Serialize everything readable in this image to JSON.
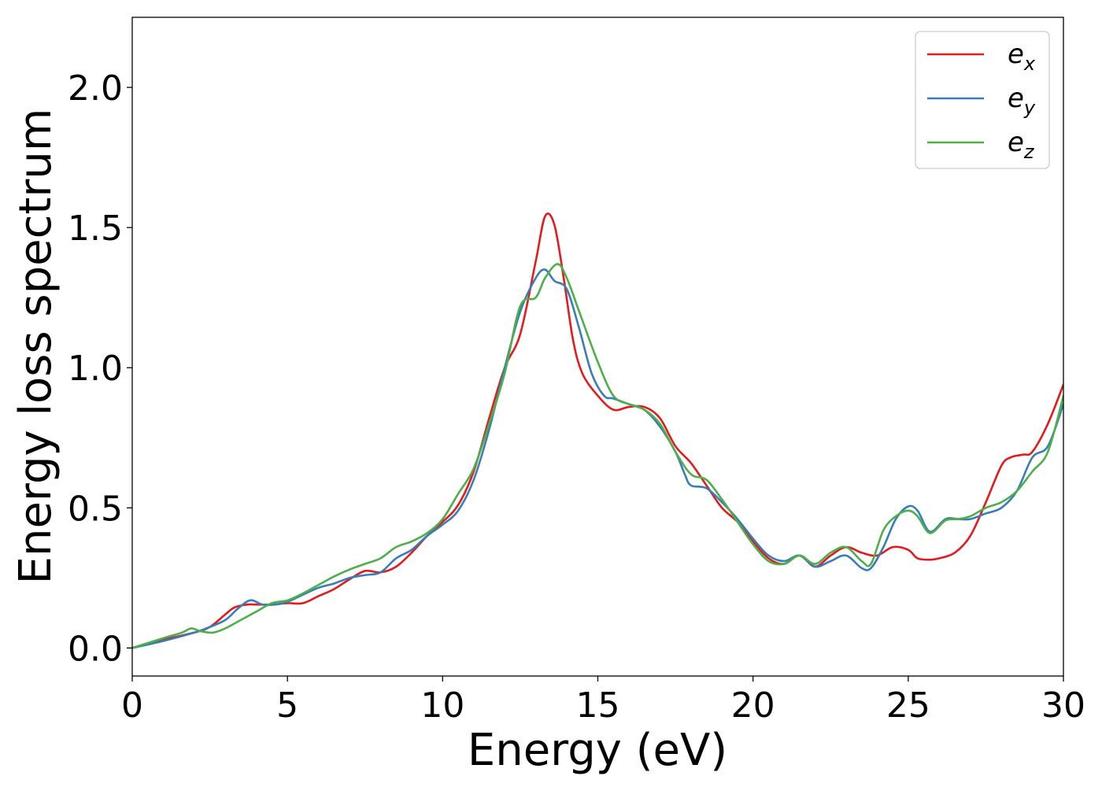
{
  "chart_data": {
    "type": "line",
    "xlabel": "Energy (eV)",
    "ylabel": "Energy loss spectrum",
    "xlim": [
      0,
      30
    ],
    "ylim": [
      -0.1,
      2.25
    ],
    "x_ticks": [
      0,
      5,
      10,
      15,
      20,
      25,
      30
    ],
    "x_tick_labels": [
      "0",
      "5",
      "10",
      "15",
      "20",
      "25",
      "30"
    ],
    "y_ticks": [
      0.0,
      0.5,
      1.0,
      1.5,
      2.0
    ],
    "y_tick_labels": [
      "0.0",
      "0.5",
      "1.0",
      "1.5",
      "2.0"
    ],
    "grid": false,
    "legend_position": "top-right",
    "series": [
      {
        "name": "e_x",
        "label_main": "e",
        "label_sub": "x",
        "color": "#e41a1c",
        "points": [
          [
            0,
            0.0
          ],
          [
            1,
            0.03
          ],
          [
            2,
            0.055
          ],
          [
            2.5,
            0.075
          ],
          [
            3,
            0.12
          ],
          [
            3.3,
            0.145
          ],
          [
            3.7,
            0.155
          ],
          [
            4,
            0.155
          ],
          [
            4.5,
            0.155
          ],
          [
            5,
            0.16
          ],
          [
            5.5,
            0.16
          ],
          [
            6,
            0.185
          ],
          [
            6.5,
            0.21
          ],
          [
            7,
            0.245
          ],
          [
            7.5,
            0.275
          ],
          [
            8,
            0.27
          ],
          [
            8.5,
            0.29
          ],
          [
            9,
            0.34
          ],
          [
            9.5,
            0.4
          ],
          [
            10,
            0.45
          ],
          [
            10.5,
            0.51
          ],
          [
            11,
            0.63
          ],
          [
            11.5,
            0.82
          ],
          [
            12,
            1.0
          ],
          [
            12.5,
            1.12
          ],
          [
            13,
            1.38
          ],
          [
            13.3,
            1.54
          ],
          [
            13.6,
            1.51
          ],
          [
            13.9,
            1.32
          ],
          [
            14.2,
            1.1
          ],
          [
            14.5,
            0.98
          ],
          [
            15,
            0.9
          ],
          [
            15.5,
            0.85
          ],
          [
            16,
            0.86
          ],
          [
            16.5,
            0.86
          ],
          [
            17,
            0.82
          ],
          [
            17.5,
            0.72
          ],
          [
            18,
            0.66
          ],
          [
            18.5,
            0.58
          ],
          [
            19,
            0.5
          ],
          [
            19.5,
            0.45
          ],
          [
            20,
            0.38
          ],
          [
            20.5,
            0.32
          ],
          [
            21,
            0.3
          ],
          [
            21.5,
            0.33
          ],
          [
            22,
            0.29
          ],
          [
            22.5,
            0.33
          ],
          [
            23,
            0.36
          ],
          [
            23.5,
            0.34
          ],
          [
            24,
            0.33
          ],
          [
            24.5,
            0.36
          ],
          [
            25,
            0.35
          ],
          [
            25.3,
            0.32
          ],
          [
            25.7,
            0.315
          ],
          [
            26,
            0.32
          ],
          [
            26.5,
            0.34
          ],
          [
            27,
            0.4
          ],
          [
            27.5,
            0.52
          ],
          [
            28,
            0.65
          ],
          [
            28.3,
            0.68
          ],
          [
            28.7,
            0.69
          ],
          [
            29,
            0.7
          ],
          [
            29.5,
            0.8
          ],
          [
            30,
            0.94
          ]
        ]
      },
      {
        "name": "e_y",
        "label_main": "e",
        "label_sub": "y",
        "color": "#377eb8",
        "points": [
          [
            0,
            0.0
          ],
          [
            1,
            0.025
          ],
          [
            2,
            0.055
          ],
          [
            2.5,
            0.075
          ],
          [
            3,
            0.1
          ],
          [
            3.4,
            0.14
          ],
          [
            3.8,
            0.17
          ],
          [
            4.2,
            0.155
          ],
          [
            4.6,
            0.155
          ],
          [
            5,
            0.165
          ],
          [
            5.5,
            0.19
          ],
          [
            6,
            0.215
          ],
          [
            6.5,
            0.23
          ],
          [
            7,
            0.25
          ],
          [
            7.5,
            0.26
          ],
          [
            8,
            0.27
          ],
          [
            8.5,
            0.32
          ],
          [
            9,
            0.35
          ],
          [
            9.5,
            0.4
          ],
          [
            10,
            0.44
          ],
          [
            10.5,
            0.49
          ],
          [
            11,
            0.6
          ],
          [
            11.5,
            0.78
          ],
          [
            12,
            1.0
          ],
          [
            12.5,
            1.2
          ],
          [
            13,
            1.32
          ],
          [
            13.3,
            1.35
          ],
          [
            13.6,
            1.31
          ],
          [
            14,
            1.28
          ],
          [
            14.4,
            1.14
          ],
          [
            14.8,
            0.98
          ],
          [
            15.2,
            0.9
          ],
          [
            15.5,
            0.89
          ],
          [
            16,
            0.87
          ],
          [
            16.5,
            0.85
          ],
          [
            17,
            0.79
          ],
          [
            17.5,
            0.7
          ],
          [
            17.8,
            0.62
          ],
          [
            18,
            0.58
          ],
          [
            18.5,
            0.57
          ],
          [
            19,
            0.52
          ],
          [
            19.5,
            0.46
          ],
          [
            20,
            0.39
          ],
          [
            20.5,
            0.33
          ],
          [
            21,
            0.31
          ],
          [
            21.5,
            0.33
          ],
          [
            22,
            0.29
          ],
          [
            22.5,
            0.31
          ],
          [
            23,
            0.33
          ],
          [
            23.5,
            0.285
          ],
          [
            23.8,
            0.285
          ],
          [
            24.2,
            0.36
          ],
          [
            24.6,
            0.46
          ],
          [
            25,
            0.505
          ],
          [
            25.3,
            0.49
          ],
          [
            25.7,
            0.415
          ],
          [
            26.2,
            0.46
          ],
          [
            26.6,
            0.46
          ],
          [
            27,
            0.46
          ],
          [
            27.5,
            0.48
          ],
          [
            28,
            0.5
          ],
          [
            28.5,
            0.56
          ],
          [
            29,
            0.68
          ],
          [
            29.5,
            0.72
          ],
          [
            30,
            0.87
          ]
        ]
      },
      {
        "name": "e_z",
        "label_main": "e",
        "label_sub": "z",
        "color": "#4daf4a",
        "points": [
          [
            0,
            0.0
          ],
          [
            1,
            0.035
          ],
          [
            1.6,
            0.055
          ],
          [
            1.9,
            0.07
          ],
          [
            2.2,
            0.06
          ],
          [
            2.6,
            0.055
          ],
          [
            3,
            0.07
          ],
          [
            3.5,
            0.1
          ],
          [
            4,
            0.13
          ],
          [
            4.5,
            0.16
          ],
          [
            5,
            0.17
          ],
          [
            5.5,
            0.195
          ],
          [
            6,
            0.225
          ],
          [
            6.5,
            0.255
          ],
          [
            7,
            0.28
          ],
          [
            7.5,
            0.3
          ],
          [
            8,
            0.32
          ],
          [
            8.5,
            0.36
          ],
          [
            9,
            0.38
          ],
          [
            9.5,
            0.41
          ],
          [
            10,
            0.46
          ],
          [
            10.5,
            0.55
          ],
          [
            11,
            0.64
          ],
          [
            11.5,
            0.8
          ],
          [
            12,
            0.98
          ],
          [
            12.5,
            1.22
          ],
          [
            13,
            1.25
          ],
          [
            13.3,
            1.32
          ],
          [
            13.7,
            1.37
          ],
          [
            14,
            1.32
          ],
          [
            14.4,
            1.2
          ],
          [
            15,
            1.02
          ],
          [
            15.5,
            0.9
          ],
          [
            16,
            0.87
          ],
          [
            16.5,
            0.85
          ],
          [
            17,
            0.8
          ],
          [
            17.5,
            0.7
          ],
          [
            18,
            0.62
          ],
          [
            18.5,
            0.6
          ],
          [
            19,
            0.53
          ],
          [
            19.5,
            0.45
          ],
          [
            20,
            0.37
          ],
          [
            20.5,
            0.31
          ],
          [
            21,
            0.3
          ],
          [
            21.5,
            0.33
          ],
          [
            22,
            0.3
          ],
          [
            22.5,
            0.34
          ],
          [
            23,
            0.36
          ],
          [
            23.5,
            0.31
          ],
          [
            23.8,
            0.3
          ],
          [
            24.2,
            0.42
          ],
          [
            24.6,
            0.47
          ],
          [
            25,
            0.49
          ],
          [
            25.3,
            0.47
          ],
          [
            25.7,
            0.41
          ],
          [
            26.2,
            0.455
          ],
          [
            26.6,
            0.46
          ],
          [
            27,
            0.47
          ],
          [
            27.5,
            0.5
          ],
          [
            28,
            0.52
          ],
          [
            28.5,
            0.56
          ],
          [
            29,
            0.63
          ],
          [
            29.5,
            0.7
          ],
          [
            30,
            0.9
          ]
        ]
      }
    ]
  }
}
